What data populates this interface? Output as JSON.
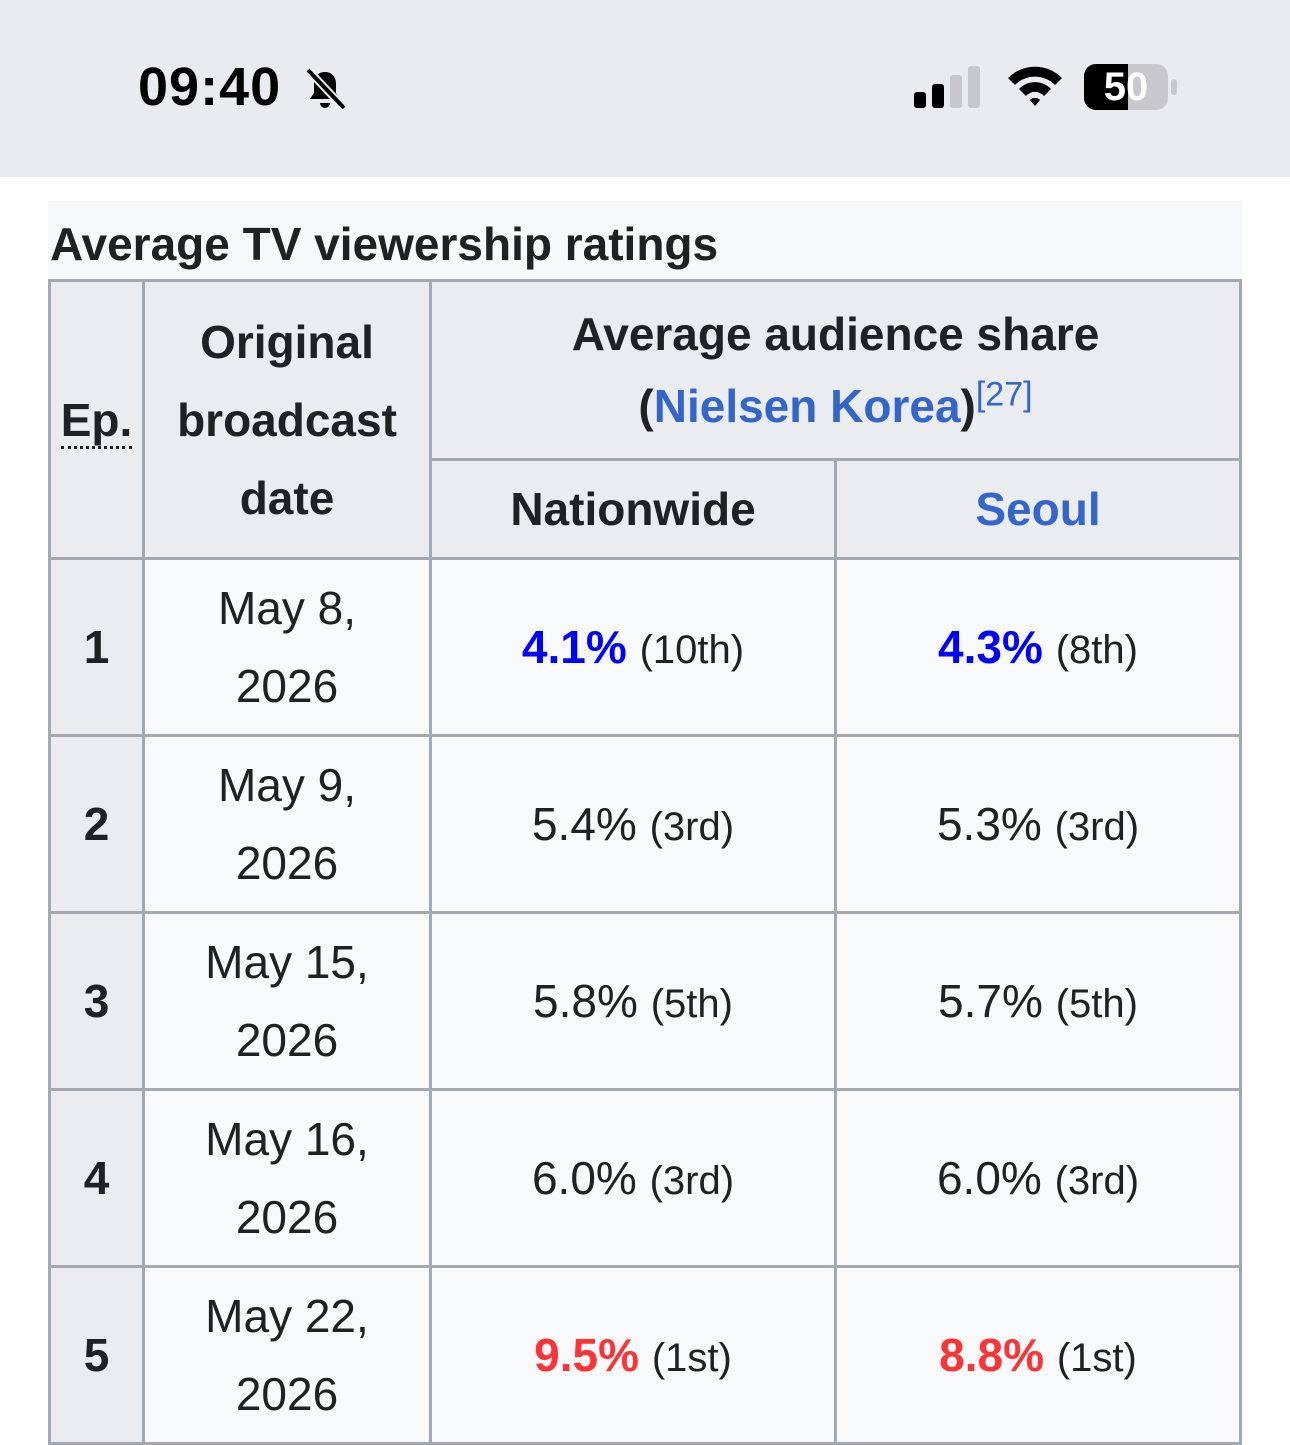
{
  "status_bar": {
    "time": "09:40",
    "mute_icon": "bell-slash-icon",
    "signal_icon": "cellular-signal-icon",
    "wifi_icon": "wifi-icon",
    "battery_level": "50"
  },
  "table": {
    "caption": "Average TV viewership ratings",
    "headers": {
      "ep": "Ep.",
      "date_line1": "Original",
      "date_line2": "broadcast",
      "date_line3": "date",
      "share_line1": "Average audience share",
      "share_open": "(",
      "share_link": "Nielsen Korea",
      "share_close": ")",
      "share_ref": "[27]",
      "nationwide": "Nationwide",
      "seoul": "Seoul"
    },
    "rows": [
      {
        "ep": "1",
        "date_l1": "May 8,",
        "date_l2": "2026",
        "nat": "4.1%",
        "nat_rank": "(10th)",
        "seoul": "4.3%",
        "seoul_rank": "(8th)"
      },
      {
        "ep": "2",
        "date_l1": "May 9,",
        "date_l2": "2026",
        "nat": "5.4%",
        "nat_rank": "(3rd)",
        "seoul": "5.3%",
        "seoul_rank": "(3rd)"
      },
      {
        "ep": "3",
        "date_l1": "May 15,",
        "date_l2": "2026",
        "nat": "5.8%",
        "nat_rank": "(5th)",
        "seoul": "5.7%",
        "seoul_rank": "(5th)"
      },
      {
        "ep": "4",
        "date_l1": "May 16,",
        "date_l2": "2026",
        "nat": "6.0%",
        "nat_rank": "(3rd)",
        "seoul": "6.0%",
        "seoul_rank": "(3rd)"
      },
      {
        "ep": "5",
        "date_l1": "May 22,",
        "date_l2": "2026",
        "nat": "9.5%",
        "nat_rank": "(1st)",
        "seoul": "8.8%",
        "seoul_rank": "(1st)"
      }
    ],
    "colors": {
      "lowest": "#0000ff",
      "highest": "#ff3333",
      "link": "#3366cc"
    }
  }
}
